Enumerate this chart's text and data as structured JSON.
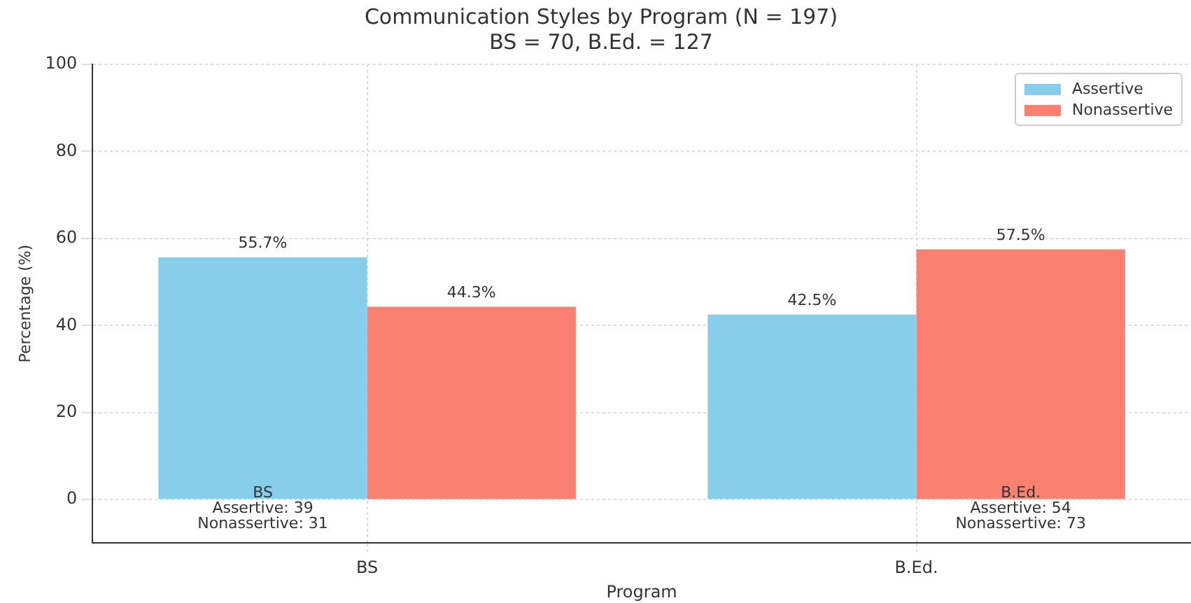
{
  "chart_data": {
    "type": "bar",
    "title": "Communication Styles by Program (N = 197)",
    "subtitle": "BS = 70, B.Ed. = 127",
    "xlabel": "Program",
    "ylabel": "Percentage (%)",
    "categories": [
      "BS",
      "B.Ed."
    ],
    "series": [
      {
        "name": "Assertive",
        "color": "#87ceeb",
        "values": [
          55.7,
          42.5
        ],
        "value_labels": [
          "55.7%",
          "42.5%"
        ]
      },
      {
        "name": "Nonassertive",
        "color": "#fa8072",
        "values": [
          44.3,
          57.5
        ],
        "value_labels": [
          "44.3%",
          "57.5%"
        ]
      }
    ],
    "ylim": [
      -10,
      100
    ],
    "yticks": [
      0,
      20,
      40,
      60,
      80,
      100
    ],
    "grid": true,
    "legend": "top right",
    "annotations": [
      {
        "text": "BS\nAssertive: 39\nNonassertive: 31",
        "x": "BS",
        "y": 0
      },
      {
        "text": "B.Ed.\nAssertive: 54\nNonassertive: 73",
        "x": "B.Ed.",
        "y": 0
      }
    ]
  }
}
